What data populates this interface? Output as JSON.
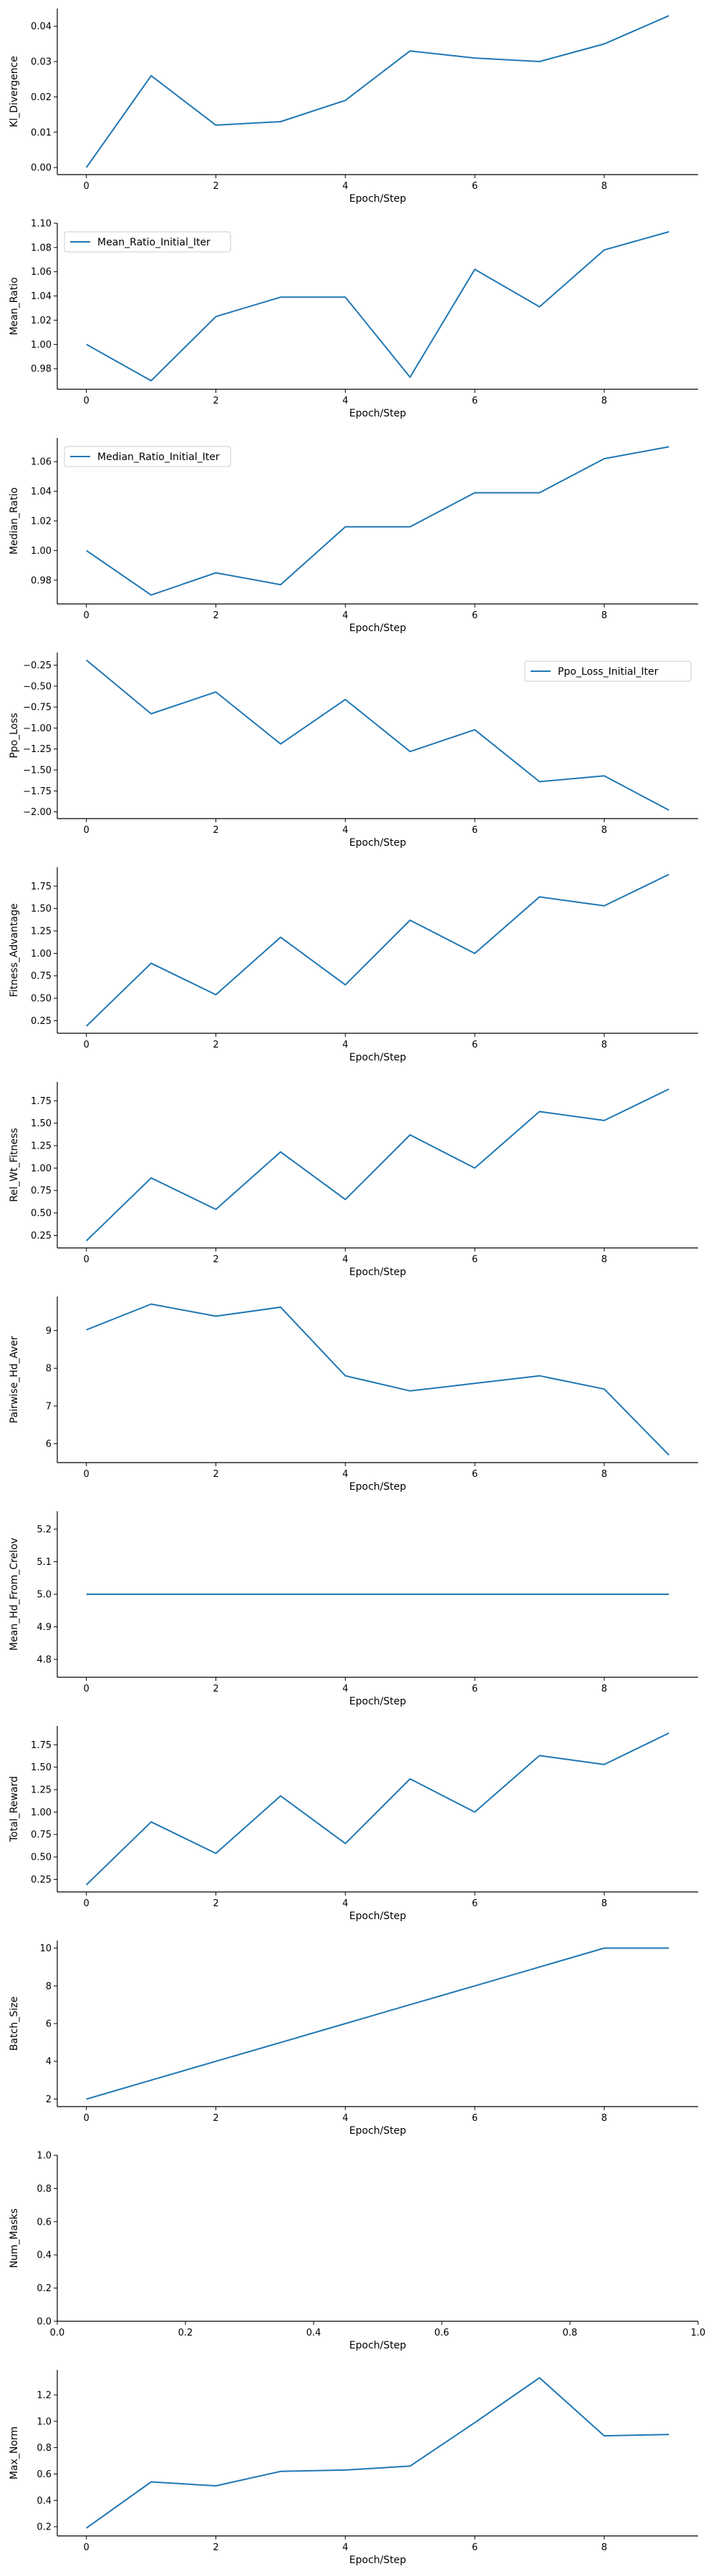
{
  "colors": {
    "line": "#1f77b4",
    "axis": "#000000",
    "legend_border": "#cccccc"
  },
  "chart_data": [
    {
      "type": "line",
      "xlabel": "Epoch/Step",
      "ylabel": "Kl_Divergence",
      "xlim": [
        -0.45,
        9.45
      ],
      "ylim": [
        -0.002,
        0.045
      ],
      "xticks": [
        0,
        2,
        4,
        6,
        8
      ],
      "xtick_labels": [
        "0",
        "2",
        "4",
        "6",
        "8"
      ],
      "yticks": [
        0.0,
        0.01,
        0.02,
        0.03,
        0.04
      ],
      "ytick_labels": [
        "0.00",
        "0.01",
        "0.02",
        "0.03",
        "0.04"
      ],
      "legend": null,
      "series": [
        {
          "x": [
            0,
            1,
            2,
            3,
            4,
            5,
            6,
            7,
            8,
            9
          ],
          "y": [
            0.0,
            0.026,
            0.012,
            0.013,
            0.019,
            0.033,
            0.031,
            0.03,
            0.035,
            0.043
          ]
        }
      ]
    },
    {
      "type": "line",
      "xlabel": "Epoch/Step",
      "ylabel": "Mean_Ratio",
      "xlim": [
        -0.45,
        9.45
      ],
      "ylim": [
        0.963,
        1.1
      ],
      "xticks": [
        0,
        2,
        4,
        6,
        8
      ],
      "xtick_labels": [
        "0",
        "2",
        "4",
        "6",
        "8"
      ],
      "yticks": [
        0.98,
        1.0,
        1.02,
        1.04,
        1.06,
        1.08,
        1.1
      ],
      "ytick_labels": [
        "0.98",
        "1.00",
        "1.02",
        "1.04",
        "1.06",
        "1.08",
        "1.10"
      ],
      "legend": "top-left",
      "series": [
        {
          "name": "Mean_Ratio_Initial_Iter",
          "x": [
            0,
            1,
            2,
            3,
            4,
            5,
            6,
            7,
            8,
            9
          ],
          "y": [
            1.0,
            0.97,
            1.023,
            1.039,
            1.039,
            0.973,
            1.062,
            1.031,
            1.078,
            1.093
          ]
        }
      ]
    },
    {
      "type": "line",
      "xlabel": "Epoch/Step",
      "ylabel": "Median_Ratio",
      "xlim": [
        -0.45,
        9.45
      ],
      "ylim": [
        0.964,
        1.076
      ],
      "xticks": [
        0,
        2,
        4,
        6,
        8
      ],
      "xtick_labels": [
        "0",
        "2",
        "4",
        "6",
        "8"
      ],
      "yticks": [
        0.98,
        1.0,
        1.02,
        1.04,
        1.06
      ],
      "ytick_labels": [
        "0.98",
        "1.00",
        "1.02",
        "1.04",
        "1.06"
      ],
      "legend": "top-left",
      "series": [
        {
          "name": "Median_Ratio_Initial_Iter",
          "x": [
            0,
            1,
            2,
            3,
            4,
            5,
            6,
            7,
            8,
            9
          ],
          "y": [
            1.0,
            0.97,
            0.985,
            0.977,
            1.016,
            1.016,
            1.039,
            1.039,
            1.062,
            1.07
          ]
        }
      ]
    },
    {
      "type": "line",
      "xlabel": "Epoch/Step",
      "ylabel": "Ppo_Loss",
      "xlim": [
        -0.45,
        9.45
      ],
      "ylim": [
        -2.08,
        -0.1
      ],
      "xticks": [
        0,
        2,
        4,
        6,
        8
      ],
      "xtick_labels": [
        "0",
        "2",
        "4",
        "6",
        "8"
      ],
      "yticks": [
        -0.25,
        -0.5,
        -0.75,
        -1.0,
        -1.25,
        -1.5,
        -1.75,
        -2.0
      ],
      "ytick_labels": [
        "−0.25",
        "−0.50",
        "−0.75",
        "−1.00",
        "−1.25",
        "−1.50",
        "−1.75",
        "−2.00"
      ],
      "legend": "top-right",
      "series": [
        {
          "name": "Ppo_Loss_Initial_Iter",
          "x": [
            0,
            1,
            2,
            3,
            4,
            5,
            6,
            7,
            8,
            9
          ],
          "y": [
            -0.19,
            -0.83,
            -0.57,
            -1.19,
            -0.66,
            -1.28,
            -1.02,
            -1.64,
            -1.57,
            -1.98
          ]
        }
      ]
    },
    {
      "type": "line",
      "xlabel": "Epoch/Step",
      "ylabel": "Fitness_Advantage",
      "xlim": [
        -0.45,
        9.45
      ],
      "ylim": [
        0.11,
        1.96
      ],
      "xticks": [
        0,
        2,
        4,
        6,
        8
      ],
      "xtick_labels": [
        "0",
        "2",
        "4",
        "6",
        "8"
      ],
      "yticks": [
        0.25,
        0.5,
        0.75,
        1.0,
        1.25,
        1.5,
        1.75
      ],
      "ytick_labels": [
        "0.25",
        "0.50",
        "0.75",
        "1.00",
        "1.25",
        "1.50",
        "1.75"
      ],
      "legend": null,
      "series": [
        {
          "x": [
            0,
            1,
            2,
            3,
            4,
            5,
            6,
            7,
            8,
            9
          ],
          "y": [
            0.19,
            0.89,
            0.54,
            1.18,
            0.65,
            1.37,
            1.0,
            1.63,
            1.53,
            1.88
          ]
        }
      ]
    },
    {
      "type": "line",
      "xlabel": "Epoch/Step",
      "ylabel": "Rel_Wt_Fitness",
      "xlim": [
        -0.45,
        9.45
      ],
      "ylim": [
        0.11,
        1.96
      ],
      "xticks": [
        0,
        2,
        4,
        6,
        8
      ],
      "xtick_labels": [
        "0",
        "2",
        "4",
        "6",
        "8"
      ],
      "yticks": [
        0.25,
        0.5,
        0.75,
        1.0,
        1.25,
        1.5,
        1.75
      ],
      "ytick_labels": [
        "0.25",
        "0.50",
        "0.75",
        "1.00",
        "1.25",
        "1.50",
        "1.75"
      ],
      "legend": null,
      "series": [
        {
          "x": [
            0,
            1,
            2,
            3,
            4,
            5,
            6,
            7,
            8,
            9
          ],
          "y": [
            0.19,
            0.89,
            0.54,
            1.18,
            0.65,
            1.37,
            1.0,
            1.63,
            1.53,
            1.88
          ]
        }
      ]
    },
    {
      "type": "line",
      "xlabel": "Epoch/Step",
      "ylabel": "Pairwise_Hd_Aver",
      "xlim": [
        -0.45,
        9.45
      ],
      "ylim": [
        5.5,
        9.9
      ],
      "xticks": [
        0,
        2,
        4,
        6,
        8
      ],
      "xtick_labels": [
        "0",
        "2",
        "4",
        "6",
        "8"
      ],
      "yticks": [
        6,
        7,
        8,
        9
      ],
      "ytick_labels": [
        "6",
        "7",
        "8",
        "9"
      ],
      "legend": null,
      "series": [
        {
          "x": [
            0,
            1,
            2,
            3,
            4,
            5,
            6,
            7,
            8,
            9
          ],
          "y": [
            9.02,
            9.7,
            9.38,
            9.62,
            7.8,
            7.4,
            7.6,
            7.8,
            7.45,
            5.7
          ]
        }
      ]
    },
    {
      "type": "line",
      "xlabel": "Epoch/Step",
      "ylabel": "Mean_Hd_From_Crelov",
      "xlim": [
        -0.45,
        9.45
      ],
      "ylim": [
        4.745,
        5.255
      ],
      "xticks": [
        0,
        2,
        4,
        6,
        8
      ],
      "xtick_labels": [
        "0",
        "2",
        "4",
        "6",
        "8"
      ],
      "yticks": [
        4.8,
        4.9,
        5.0,
        5.1,
        5.2
      ],
      "ytick_labels": [
        "4.8",
        "4.9",
        "5.0",
        "5.1",
        "5.2"
      ],
      "legend": null,
      "series": [
        {
          "x": [
            0,
            1,
            2,
            3,
            4,
            5,
            6,
            7,
            8,
            9
          ],
          "y": [
            5.0,
            5.0,
            5.0,
            5.0,
            5.0,
            5.0,
            5.0,
            5.0,
            5.0,
            5.0
          ]
        }
      ]
    },
    {
      "type": "line",
      "xlabel": "Epoch/Step",
      "ylabel": "Total_Reward",
      "xlim": [
        -0.45,
        9.45
      ],
      "ylim": [
        0.11,
        1.96
      ],
      "xticks": [
        0,
        2,
        4,
        6,
        8
      ],
      "xtick_labels": [
        "0",
        "2",
        "4",
        "6",
        "8"
      ],
      "yticks": [
        0.25,
        0.5,
        0.75,
        1.0,
        1.25,
        1.5,
        1.75
      ],
      "ytick_labels": [
        "0.25",
        "0.50",
        "0.75",
        "1.00",
        "1.25",
        "1.50",
        "1.75"
      ],
      "legend": null,
      "series": [
        {
          "x": [
            0,
            1,
            2,
            3,
            4,
            5,
            6,
            7,
            8,
            9
          ],
          "y": [
            0.19,
            0.89,
            0.54,
            1.18,
            0.65,
            1.37,
            1.0,
            1.63,
            1.53,
            1.88
          ]
        }
      ]
    },
    {
      "type": "line",
      "xlabel": "Epoch/Step",
      "ylabel": "Batch_Size",
      "xlim": [
        -0.45,
        9.45
      ],
      "ylim": [
        1.6,
        10.4
      ],
      "xticks": [
        0,
        2,
        4,
        6,
        8
      ],
      "xtick_labels": [
        "0",
        "2",
        "4",
        "6",
        "8"
      ],
      "yticks": [
        2,
        4,
        6,
        8,
        10
      ],
      "ytick_labels": [
        "2",
        "4",
        "6",
        "8",
        "10"
      ],
      "legend": null,
      "series": [
        {
          "x": [
            0,
            1,
            2,
            3,
            4,
            5,
            6,
            7,
            8,
            9
          ],
          "y": [
            2,
            3,
            4,
            5,
            6,
            7,
            8,
            9,
            10,
            10
          ]
        }
      ]
    },
    {
      "type": "line",
      "xlabel": "Epoch/Step",
      "ylabel": "Num_Masks",
      "xlim": [
        0.0,
        1.0
      ],
      "ylim": [
        0.0,
        1.0
      ],
      "xticks": [
        0.0,
        0.2,
        0.4,
        0.6,
        0.8,
        1.0
      ],
      "xtick_labels": [
        "0.0",
        "0.2",
        "0.4",
        "0.6",
        "0.8",
        "1.0"
      ],
      "yticks": [
        0.0,
        0.2,
        0.4,
        0.6,
        0.8,
        1.0
      ],
      "ytick_labels": [
        "0.0",
        "0.2",
        "0.4",
        "0.6",
        "0.8",
        "1.0"
      ],
      "legend": null,
      "series": []
    },
    {
      "type": "line",
      "xlabel": "Epoch/Step",
      "ylabel": "Max_Norm",
      "xlim": [
        -0.45,
        9.45
      ],
      "ylim": [
        0.13,
        1.39
      ],
      "xticks": [
        0,
        2,
        4,
        6,
        8
      ],
      "xtick_labels": [
        "0",
        "2",
        "4",
        "6",
        "8"
      ],
      "yticks": [
        0.2,
        0.4,
        0.6,
        0.8,
        1.0,
        1.2
      ],
      "ytick_labels": [
        "0.2",
        "0.4",
        "0.6",
        "0.8",
        "1.0",
        "1.2"
      ],
      "legend": null,
      "series": [
        {
          "x": [
            0,
            1,
            2,
            3,
            4,
            5,
            6,
            7,
            8,
            9
          ],
          "y": [
            0.19,
            0.54,
            0.51,
            0.62,
            0.63,
            0.66,
            0.99,
            1.33,
            0.89,
            0.9
          ]
        }
      ]
    }
  ]
}
